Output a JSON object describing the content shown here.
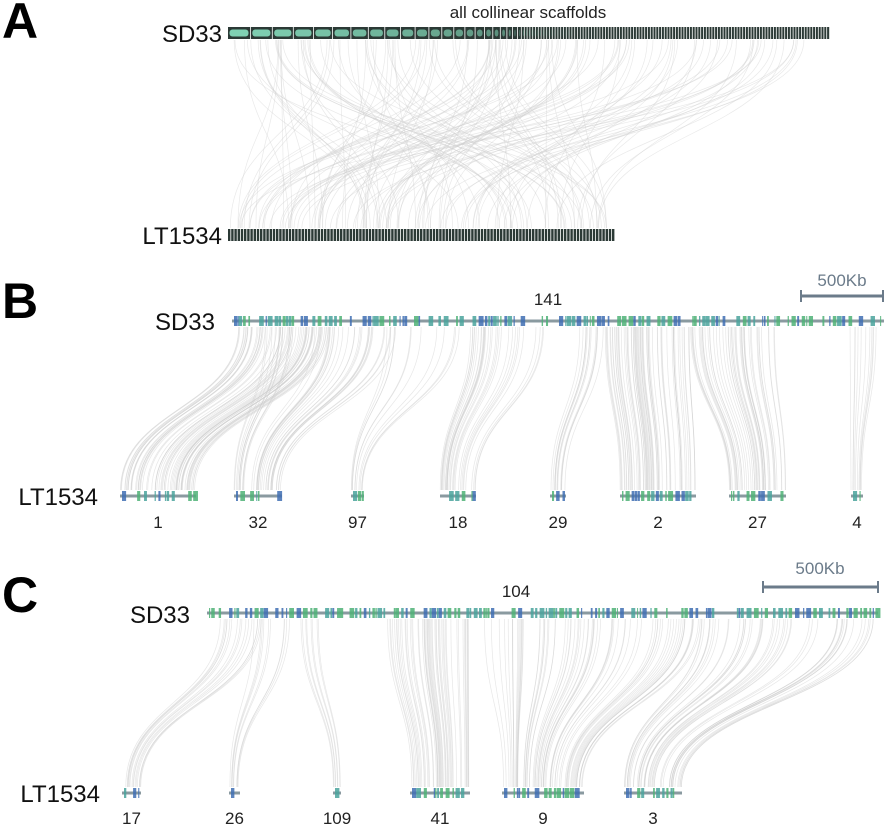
{
  "colors": {
    "link": "#cfcfcf",
    "scaffold_dark": "#2c3a36",
    "scaffold_light": "#7fd1b3",
    "teal": "#4aa39c",
    "blue": "#3f6fb3",
    "green": "#4fb277",
    "backbone": "#8a9aa0",
    "scale": "#6b7b8a"
  },
  "panels": [
    {
      "letter": "A",
      "title": "all collinear scaffolds",
      "top_genome": "SD33",
      "bottom_genome": "LT1534"
    },
    {
      "letter": "B",
      "top_genome": "SD33",
      "bottom_genome": "LT1534",
      "top_scaffold": "141",
      "scale_label": "500Kb",
      "bottom_scaffolds": [
        "1",
        "32",
        "97",
        "18",
        "29",
        "2",
        "27",
        "4"
      ]
    },
    {
      "letter": "C",
      "top_genome": "SD33",
      "bottom_genome": "LT1534",
      "top_scaffold": "104",
      "scale_label": "500Kb",
      "bottom_scaffolds": [
        "17",
        "26",
        "109",
        "41",
        "9",
        "3"
      ]
    }
  ]
}
